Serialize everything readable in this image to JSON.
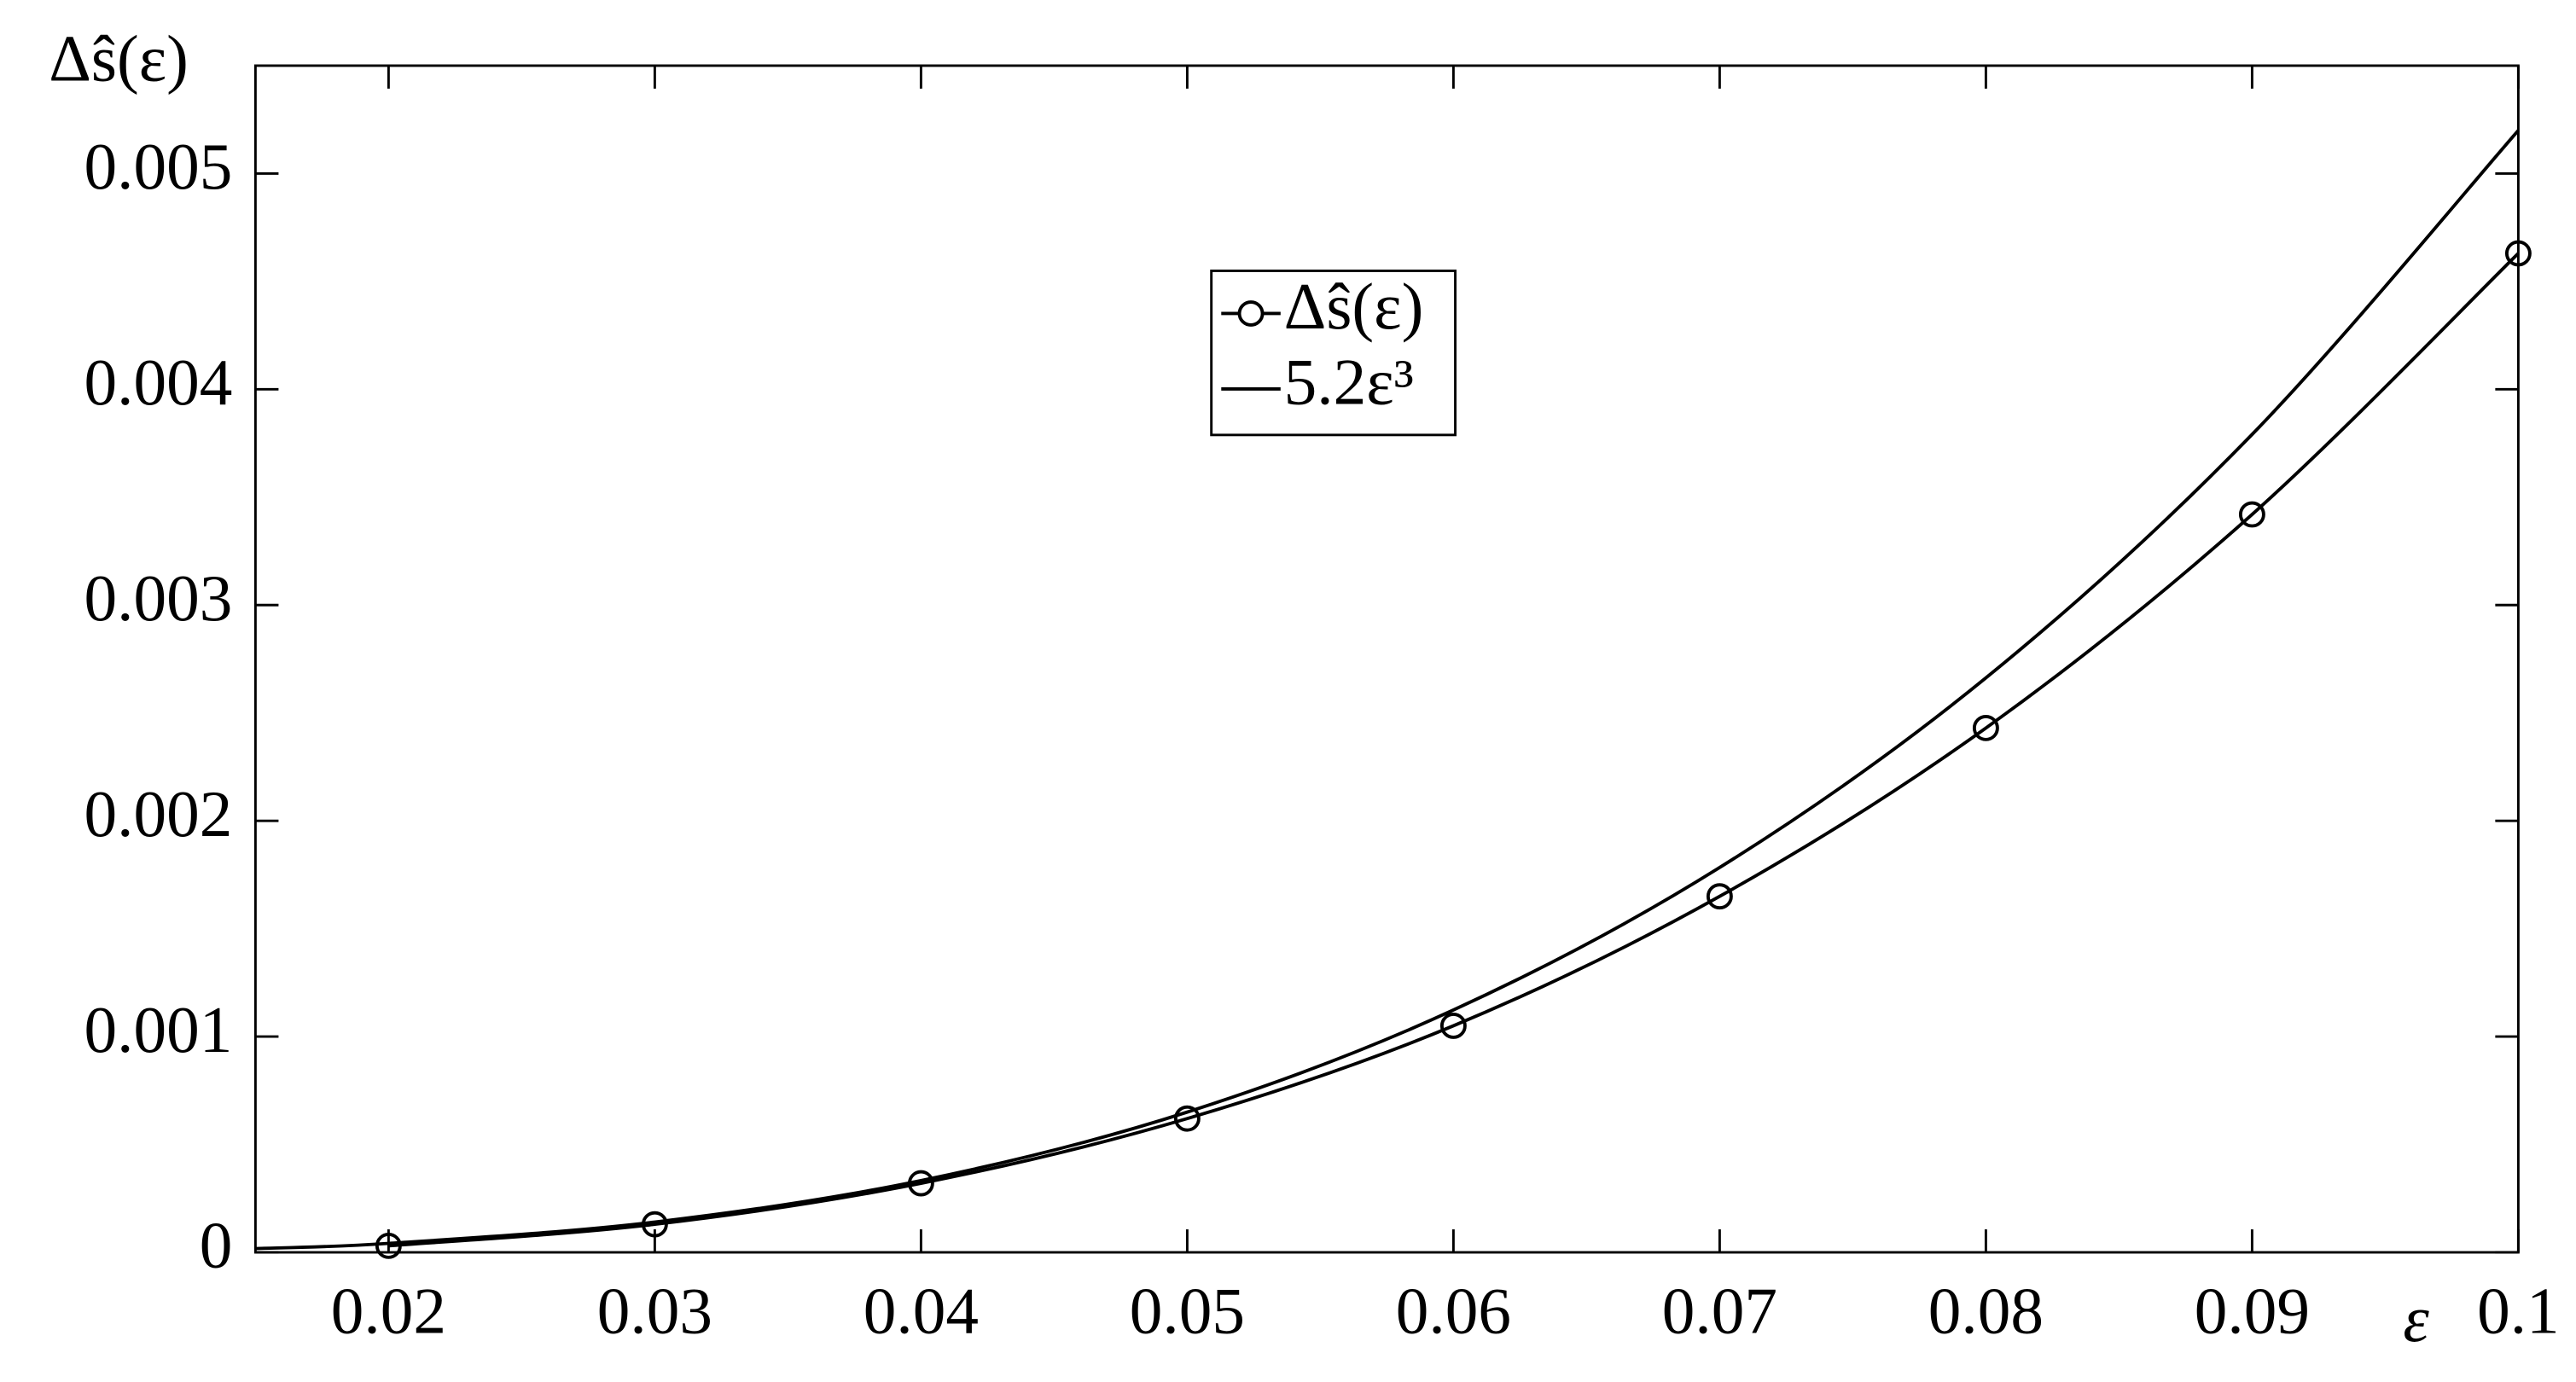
{
  "chart_data": {
    "type": "line",
    "y_label": "Δŝ(ε)",
    "x_label": "ε",
    "xlim": [
      0.015,
      0.1
    ],
    "ylim": [
      0,
      0.0055
    ],
    "xticks": [
      0.02,
      0.03,
      0.04,
      0.05,
      0.06,
      0.07,
      0.08,
      0.09,
      0.1
    ],
    "yticks": [
      0,
      0.001,
      0.002,
      0.003,
      0.004,
      0.005
    ],
    "grid": false,
    "legend": "upper center",
    "series": [
      {
        "name": "Δŝ(ε)",
        "color": "#000000",
        "marker": "circle",
        "x": [
          0.02,
          0.03,
          0.04,
          0.05,
          0.06,
          0.07,
          0.08,
          0.09,
          0.1
        ],
        "values": [
          3e-05,
          0.00013,
          0.00032,
          0.00062,
          0.00105,
          0.00165,
          0.00243,
          0.00342,
          0.00463
        ]
      },
      {
        "name": "5.2ε³",
        "color": "#000000",
        "x": [
          0.015,
          0.02,
          0.03,
          0.04,
          0.05,
          0.06,
          0.07,
          0.08,
          0.09,
          0.1
        ],
        "values": [
          1.76e-05,
          4.16e-05,
          0.0001404,
          0.0003328,
          0.00065,
          0.0011232,
          0.0017836,
          0.0026624,
          0.0037908,
          0.0052
        ]
      }
    ]
  }
}
